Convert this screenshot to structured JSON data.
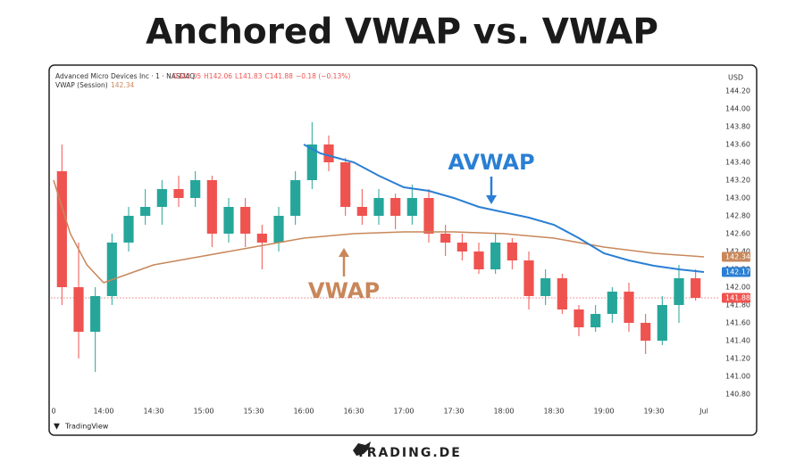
{
  "chart_data": {
    "type": "candlestick",
    "title": "Anchored VWAP vs. VWAP",
    "symbol": "Advanced Micro Devices Inc · 1 · NASDAQ",
    "legend_values": [
      "O142.05",
      "H142.06",
      "L141.83",
      "C141.88",
      "−0.18 (−0.13%)"
    ],
    "indicator_label": "VWAP (Session)",
    "indicator_value": "142.34",
    "currency": "USD",
    "footer": "TradingView",
    "brand": "TRADING.DE",
    "up_color": "#26a69a",
    "down_color": "#ef5350",
    "xlim": [
      0,
      390
    ],
    "xticks": [
      {
        "value": 0,
        "label": "0"
      },
      {
        "value": 30,
        "label": "14:00"
      },
      {
        "value": 60,
        "label": "14:30"
      },
      {
        "value": 90,
        "label": "15:00"
      },
      {
        "value": 120,
        "label": "15:30"
      },
      {
        "value": 150,
        "label": "16:00"
      },
      {
        "value": 180,
        "label": "16:30"
      },
      {
        "value": 210,
        "label": "17:00"
      },
      {
        "value": 240,
        "label": "17:30"
      },
      {
        "value": 270,
        "label": "18:00"
      },
      {
        "value": 300,
        "label": "18:30"
      },
      {
        "value": 330,
        "label": "19:00"
      },
      {
        "value": 360,
        "label": "19:30"
      },
      {
        "value": 390,
        "label": "Jul"
      }
    ],
    "ylim": [
      140.7,
      144.3
    ],
    "yticks": [
      {
        "value": 140.8,
        "label": "140.80"
      },
      {
        "value": 141.0,
        "label": "141.00"
      },
      {
        "value": 141.2,
        "label": "141.20"
      },
      {
        "value": 141.4,
        "label": "141.40"
      },
      {
        "value": 141.6,
        "label": "141.60"
      },
      {
        "value": 141.8,
        "label": "141.80"
      },
      {
        "value": 142.0,
        "label": "142.00"
      },
      {
        "value": 142.2,
        "label": "142.20"
      },
      {
        "value": 142.4,
        "label": "142.40"
      },
      {
        "value": 142.6,
        "label": "142.60"
      },
      {
        "value": 142.8,
        "label": "142.80"
      },
      {
        "value": 143.0,
        "label": "143.00"
      },
      {
        "value": 143.2,
        "label": "143.20"
      },
      {
        "value": 143.4,
        "label": "143.40"
      },
      {
        "value": 143.6,
        "label": "143.60"
      },
      {
        "value": 143.8,
        "label": "143.80"
      },
      {
        "value": 144.0,
        "label": "144.00"
      },
      {
        "value": 144.2,
        "label": "144.20"
      }
    ],
    "candles": {
      "x": [
        5,
        15,
        25,
        35,
        45,
        55,
        65,
        75,
        85,
        95,
        105,
        115,
        125,
        135,
        145,
        155,
        165,
        175,
        185,
        195,
        205,
        215,
        225,
        235,
        245,
        255,
        265,
        275,
        285,
        295,
        305,
        315,
        325,
        335,
        345,
        355,
        365,
        375,
        385
      ],
      "open": [
        143.3,
        142.0,
        141.5,
        141.9,
        142.5,
        142.8,
        142.9,
        143.1,
        143.0,
        143.2,
        142.6,
        142.9,
        142.6,
        142.5,
        142.8,
        143.2,
        143.6,
        143.4,
        142.9,
        142.8,
        143.0,
        142.8,
        143.0,
        142.6,
        142.5,
        142.4,
        142.2,
        142.5,
        142.3,
        141.9,
        142.1,
        141.75,
        141.55,
        141.7,
        141.95,
        141.6,
        141.4,
        141.8,
        142.1
      ],
      "high": [
        143.6,
        142.5,
        142.0,
        142.6,
        142.9,
        143.1,
        143.2,
        143.25,
        143.3,
        143.25,
        143.0,
        143.0,
        142.7,
        142.9,
        143.3,
        143.85,
        143.7,
        143.45,
        143.1,
        143.1,
        143.05,
        143.15,
        143.1,
        142.7,
        142.6,
        142.5,
        142.6,
        142.55,
        142.4,
        142.2,
        142.15,
        141.8,
        141.8,
        142.0,
        142.05,
        141.7,
        141.9,
        142.25,
        142.2
      ],
      "low": [
        141.8,
        141.2,
        141.05,
        141.8,
        142.4,
        142.7,
        142.7,
        142.9,
        142.9,
        142.45,
        142.5,
        142.45,
        142.2,
        142.4,
        142.7,
        143.1,
        143.3,
        142.8,
        142.7,
        142.7,
        142.65,
        142.7,
        142.5,
        142.35,
        142.3,
        142.15,
        142.15,
        142.2,
        141.75,
        141.8,
        141.7,
        141.45,
        141.5,
        141.6,
        141.5,
        141.25,
        141.35,
        141.6,
        141.85
      ],
      "close": [
        142.0,
        141.5,
        141.9,
        142.5,
        142.8,
        142.9,
        143.1,
        143.0,
        143.2,
        142.6,
        142.9,
        142.6,
        142.5,
        142.8,
        143.2,
        143.6,
        143.4,
        142.9,
        142.8,
        143.0,
        142.8,
        143.0,
        142.6,
        142.5,
        142.4,
        142.2,
        142.5,
        142.3,
        141.9,
        142.1,
        141.75,
        141.55,
        141.7,
        141.95,
        141.6,
        141.4,
        141.8,
        142.1,
        141.88
      ]
    },
    "series": [
      {
        "name": "VWAP",
        "color": "#c8875a",
        "x": [
          0,
          10,
          20,
          30,
          45,
          60,
          90,
          120,
          150,
          180,
          210,
          240,
          270,
          300,
          330,
          360,
          390
        ],
        "values": [
          143.2,
          142.6,
          142.25,
          142.05,
          142.15,
          142.25,
          142.35,
          142.45,
          142.55,
          142.6,
          142.62,
          142.62,
          142.6,
          142.55,
          142.45,
          142.38,
          142.34
        ]
      },
      {
        "name": "AVWAP",
        "color": "#2a7fd4",
        "x": [
          150,
          160,
          170,
          180,
          195,
          210,
          225,
          240,
          255,
          270,
          285,
          300,
          315,
          330,
          345,
          360,
          375,
          390
        ],
        "values": [
          143.6,
          143.5,
          143.45,
          143.4,
          143.25,
          143.12,
          143.08,
          143.0,
          142.9,
          142.84,
          142.78,
          142.7,
          142.55,
          142.38,
          142.3,
          142.24,
          142.2,
          142.17
        ]
      }
    ],
    "last_close": 141.88,
    "price_tags": [
      {
        "value": 142.34,
        "label": "142.34",
        "color": "#c8875a"
      },
      {
        "value": 142.17,
        "label": "142.17",
        "color": "#2a7fd4"
      },
      {
        "value": 141.88,
        "label": "141.88",
        "color": "#ef5350"
      }
    ]
  }
}
